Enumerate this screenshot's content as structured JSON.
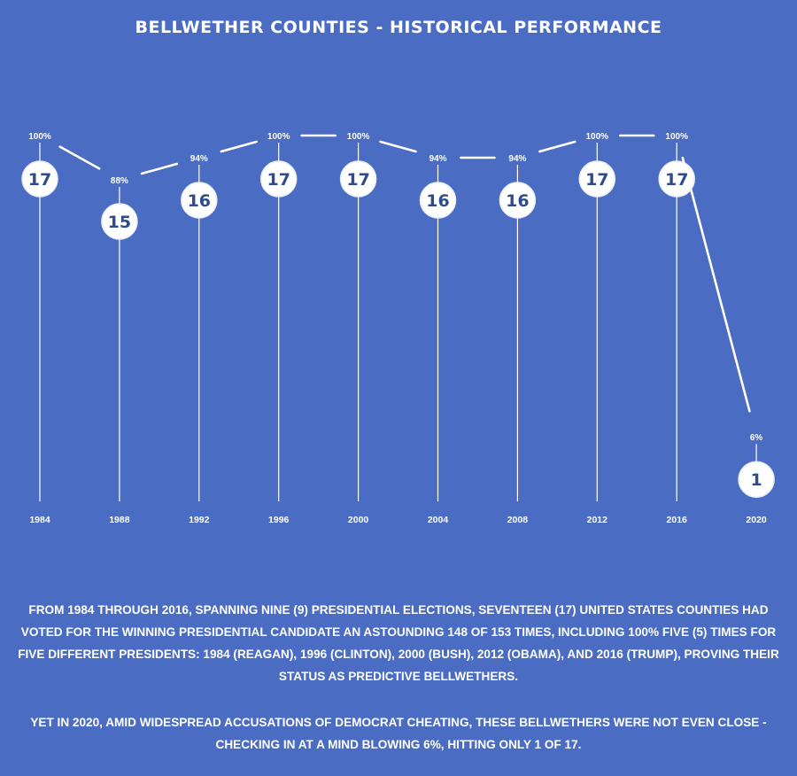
{
  "title": "BELLWETHER COUNTIES - HISTORICAL PERFORMANCE",
  "colors": {
    "background": "#4a6cc3",
    "line": "#ffffff",
    "circle_fill": "#ffffff",
    "circle_text": "#2f4b8f"
  },
  "chart_data": {
    "type": "line",
    "title": "BELLWETHER COUNTIES - HISTORICAL PERFORMANCE",
    "xlabel": "",
    "ylabel": "",
    "categories": [
      "1984",
      "1988",
      "1992",
      "1996",
      "2000",
      "2004",
      "2008",
      "2012",
      "2016",
      "2020"
    ],
    "series": [
      {
        "values": [
          17,
          15,
          16,
          17,
          17,
          16,
          16,
          17,
          17,
          1
        ]
      }
    ],
    "percent_labels": [
      "100%",
      "88%",
      "94%",
      "100%",
      "100%",
      "94%",
      "94%",
      "100%",
      "100%",
      "6%"
    ],
    "ylim": [
      0,
      17
    ],
    "grid": false,
    "legend": "none"
  },
  "text": {
    "paragraph1": "FROM 1984 THROUGH 2016, SPANNING NINE (9) PRESIDENTIAL ELECTIONS, SEVENTEEN (17) UNITED STATES COUNTIES HAD VOTED FOR THE WINNING PRESIDENTIAL CANDIDATE AN ASTOUNDING 148 OF 153 TIMES, INCLUDING 100% FIVE (5) TIMES FOR FIVE DIFFERENT PRESIDENTS: 1984 (REAGAN), 1996 (CLINTON), 2000 (BUSH), 2012 (OBAMA), AND 2016 (TRUMP), PROVING THEIR STATUS AS PREDICTIVE BELLWETHERS.",
    "paragraph2": "YET IN 2020, AMID WIDESPREAD ACCUSATIONS OF DEMOCRAT CHEATING, THESE BELLWETHERS WERE NOT EVEN CLOSE - CHECKING IN AT A MIND BLOWING 6%, HITTING ONLY 1 OF 17."
  }
}
